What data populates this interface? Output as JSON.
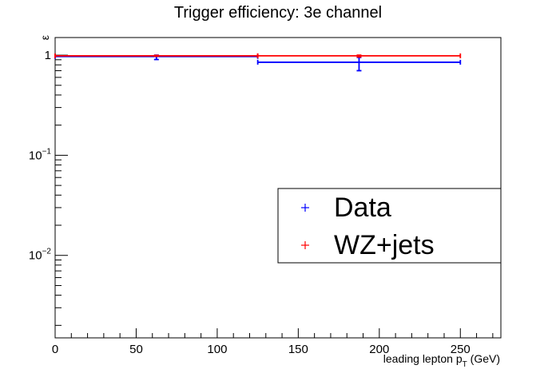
{
  "chart_data": {
    "type": "scatter",
    "title": "Trigger efficiency: 3e channel",
    "xlabel": "leading lepton p",
    "xlabel_sub": "T",
    "xlabel_unit": " (GeV)",
    "ylabel": "ε",
    "xlim": [
      0,
      275
    ],
    "ylim": [
      0.0015,
      1.5
    ],
    "yscale": "log",
    "grid": false,
    "legend_position": "center-right",
    "x_ticks": [
      {
        "value": 0,
        "label": "0"
      },
      {
        "value": 50,
        "label": "50"
      },
      {
        "value": 100,
        "label": "100"
      },
      {
        "value": 150,
        "label": "150"
      },
      {
        "value": 200,
        "label": "200"
      },
      {
        "value": 250,
        "label": "250"
      }
    ],
    "y_ticks": [
      {
        "value": 1,
        "label": "1"
      },
      {
        "value": 0.1,
        "label": "10",
        "exp": "−1"
      },
      {
        "value": 0.01,
        "label": "10",
        "exp": "−2"
      }
    ],
    "series": [
      {
        "name": "Data",
        "color": "#0000ff",
        "points": [
          {
            "x": 62.5,
            "xlo": 0,
            "xhi": 125,
            "y": 0.97,
            "ylo": 0.905,
            "yhi": 1.0
          },
          {
            "x": 187.5,
            "xlo": 125,
            "xhi": 250,
            "y": 0.85,
            "ylo": 0.7,
            "yhi": 0.95
          }
        ]
      },
      {
        "name": "WZ+jets",
        "color": "#ff0000",
        "points": [
          {
            "x": 62.5,
            "xlo": 0,
            "xhi": 125,
            "y": 0.985,
            "ylo": 0.975,
            "yhi": 0.995
          },
          {
            "x": 187.5,
            "xlo": 125,
            "xhi": 250,
            "y": 0.985,
            "ylo": 0.96,
            "yhi": 1.0
          }
        ]
      }
    ]
  }
}
